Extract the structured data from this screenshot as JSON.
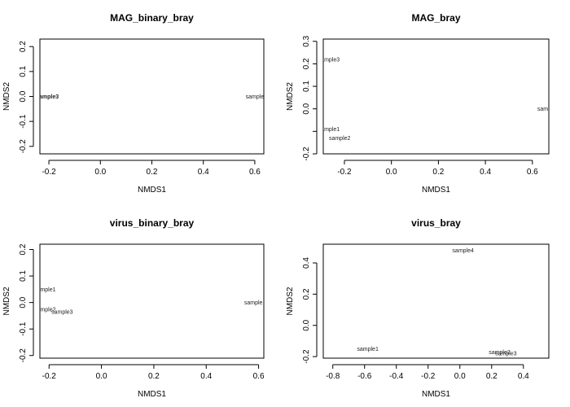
{
  "chart_data": [
    {
      "type": "scatter",
      "title": "MAG_binary_bray",
      "xlabel": "NMDS1",
      "ylabel": "NMDS2",
      "xlim": [
        -0.235,
        0.635
      ],
      "ylim": [
        -0.23,
        0.23
      ],
      "xticks": [
        -0.2,
        0.0,
        0.2,
        0.4,
        0.6
      ],
      "xtick_labels": [
        "-0.2",
        "0.0",
        "0.2",
        "0.4",
        "0.6"
      ],
      "yticks": [
        -0.2,
        -0.1,
        0.0,
        0.1,
        0.2
      ],
      "ytick_labels": [
        "-0.2",
        "-0.1",
        "0.0",
        "0.1",
        "0.2"
      ],
      "points": [
        {
          "label": "ample3",
          "x": -0.2,
          "y": 0.0,
          "bold": true
        },
        {
          "label": "sample",
          "x": 0.6,
          "y": 0.0
        }
      ]
    },
    {
      "type": "scatter",
      "title": "MAG_bray",
      "xlabel": "NMDS1",
      "ylabel": "NMDS2",
      "xlim": [
        -0.29,
        0.67
      ],
      "ylim": [
        -0.2,
        0.31
      ],
      "xticks": [
        -0.2,
        0.0,
        0.2,
        0.4,
        0.6
      ],
      "xtick_labels": [
        "-0.2",
        "0.0",
        "0.2",
        "0.4",
        "0.6"
      ],
      "yticks": [
        -0.2,
        -0.1,
        0.0,
        0.1,
        0.2,
        0.3
      ],
      "ytick_labels": [
        "-0.2",
        "",
        "0.0",
        "0.1",
        "0.2",
        "0.3"
      ],
      "points": [
        {
          "label": "ample3",
          "x": -0.26,
          "y": 0.22
        },
        {
          "label": "ample1",
          "x": -0.26,
          "y": -0.09
        },
        {
          "label": "sample2",
          "x": -0.22,
          "y": -0.13
        },
        {
          "label": "sample",
          "x": 0.66,
          "y": 0.0
        }
      ]
    },
    {
      "type": "scatter",
      "title": "virus_binary_bray",
      "xlabel": "NMDS1",
      "ylabel": "NMDS2",
      "xlim": [
        -0.235,
        0.62
      ],
      "ylim": [
        -0.21,
        0.22
      ],
      "xticks": [
        -0.2,
        0.0,
        0.2,
        0.4,
        0.6
      ],
      "xtick_labels": [
        "-0.2",
        "0.0",
        "0.2",
        "0.4",
        "0.6"
      ],
      "yticks": [
        -0.2,
        -0.1,
        0.0,
        0.1,
        0.2
      ],
      "ytick_labels": [
        "-0.2",
        "-0.1",
        "0.0",
        "0.1",
        "0.2"
      ],
      "points": [
        {
          "label": "ample1",
          "x": -0.21,
          "y": 0.05
        },
        {
          "label": "ample2",
          "x": -0.21,
          "y": -0.025
        },
        {
          "label": "sample3",
          "x": -0.15,
          "y": -0.035
        },
        {
          "label": "sample",
          "x": 0.58,
          "y": 0.0
        }
      ]
    },
    {
      "type": "scatter",
      "title": "virus_bray",
      "xlabel": "NMDS1",
      "ylabel": "NMDS2",
      "xlim": [
        -0.86,
        0.56
      ],
      "ylim": [
        -0.21,
        0.52
      ],
      "xticks": [
        -0.8,
        -0.6,
        -0.4,
        -0.2,
        0.0,
        0.2,
        0.4
      ],
      "xtick_labels": [
        "-0.8",
        "-0.6",
        "-0.4",
        "-0.2",
        "0.0",
        "0.2",
        "0.4"
      ],
      "yticks": [
        -0.2,
        0.0,
        0.2,
        0.4
      ],
      "ytick_labels": [
        "-0.2",
        "0.0",
        "0.2",
        "0.4"
      ],
      "points": [
        {
          "label": "sample4",
          "x": 0.02,
          "y": 0.48
        },
        {
          "label": "sample1",
          "x": -0.58,
          "y": -0.15
        },
        {
          "label": "sample2",
          "x": 0.25,
          "y": -0.17
        },
        {
          "label": "sample3",
          "x": 0.29,
          "y": -0.18
        }
      ]
    }
  ]
}
